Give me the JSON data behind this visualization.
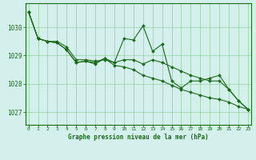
{
  "title": "Graphe pression niveau de la mer (hPa)",
  "background_color": "#d4f0ec",
  "grid_color": "#66bb66",
  "line_color": "#1a6b1a",
  "spine_color": "#1a6b1a",
  "xlim": [
    -0.3,
    23.3
  ],
  "ylim": [
    1026.55,
    1030.85
  ],
  "yticks": [
    1027,
    1028,
    1029,
    1030
  ],
  "xticks": [
    0,
    1,
    2,
    3,
    4,
    5,
    6,
    7,
    8,
    9,
    10,
    11,
    12,
    13,
    14,
    15,
    16,
    17,
    18,
    19,
    20,
    21,
    22,
    23
  ],
  "series": [
    [
      1030.55,
      1029.6,
      1029.5,
      1029.5,
      1029.3,
      1028.85,
      1028.85,
      1028.8,
      1028.85,
      1028.75,
      1029.6,
      1029.55,
      1030.05,
      1029.15,
      1029.4,
      1028.1,
      1027.85,
      1028.1,
      1028.1,
      1028.2,
      1028.3,
      1027.8,
      1027.4,
      1027.1
    ],
    [
      1030.55,
      1029.6,
      1029.5,
      1029.45,
      1029.2,
      1028.75,
      1028.8,
      1028.75,
      1028.9,
      1028.75,
      1028.85,
      1028.85,
      1028.7,
      1028.85,
      1028.75,
      1028.6,
      1028.45,
      1028.3,
      1028.2,
      1028.1,
      1028.1,
      1027.8,
      1027.4,
      1027.1
    ],
    [
      1030.55,
      1029.6,
      1029.5,
      1029.45,
      1029.2,
      1028.75,
      1028.8,
      1028.7,
      1028.9,
      1028.65,
      1028.6,
      1028.5,
      1028.3,
      1028.2,
      1028.1,
      1027.95,
      1027.8,
      1027.7,
      1027.6,
      1027.5,
      1027.45,
      1027.35,
      1027.2,
      1027.1
    ]
  ]
}
